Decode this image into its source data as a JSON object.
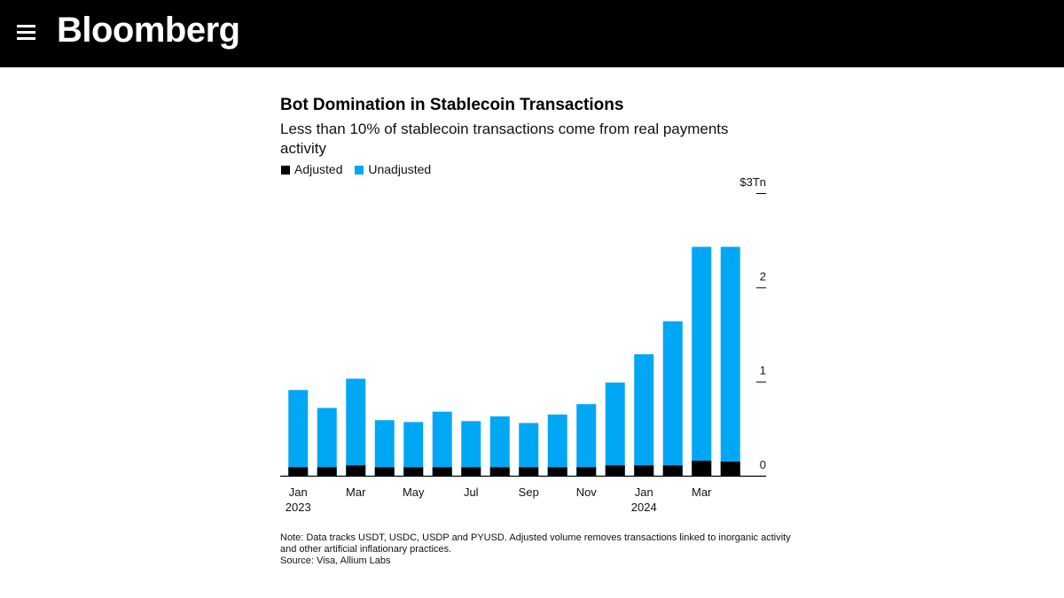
{
  "header": {
    "brand": "Bloomberg",
    "menu_icon": "hamburger-menu-icon",
    "background": "#000000"
  },
  "chart_data": {
    "type": "bar",
    "stacked": false,
    "title": "Bot Domination in Stablecoin Transactions",
    "subtitle": "Less than 10% of stablecoin transactions come from real payments activity",
    "legend": [
      {
        "name": "Adjusted",
        "color": "#000000"
      },
      {
        "name": "Unadjusted",
        "color": "#00a7f5"
      }
    ],
    "legend_placement": "top-left",
    "categories": [
      "Jan 2023",
      "Feb 2023",
      "Mar 2023",
      "Apr 2023",
      "May 2023",
      "Jun 2023",
      "Jul 2023",
      "Aug 2023",
      "Sep 2023",
      "Oct 2023",
      "Nov 2023",
      "Dec 2023",
      "Jan 2024",
      "Feb 2024",
      "Mar 2024",
      "Apr 2024"
    ],
    "x_tick_labels": [
      {
        "index": 0,
        "label": "Jan",
        "sublabel": "2023"
      },
      {
        "index": 2,
        "label": "Mar",
        "sublabel": ""
      },
      {
        "index": 4,
        "label": "May",
        "sublabel": ""
      },
      {
        "index": 6,
        "label": "Jul",
        "sublabel": ""
      },
      {
        "index": 8,
        "label": "Sep",
        "sublabel": ""
      },
      {
        "index": 10,
        "label": "Nov",
        "sublabel": ""
      },
      {
        "index": 12,
        "label": "Jan",
        "sublabel": "2024"
      },
      {
        "index": 14,
        "label": "Mar",
        "sublabel": ""
      }
    ],
    "series": [
      {
        "name": "Unadjusted",
        "color": "#00a7f5",
        "values": [
          0.91,
          0.72,
          1.03,
          0.59,
          0.57,
          0.68,
          0.58,
          0.63,
          0.56,
          0.65,
          0.76,
          0.99,
          1.29,
          1.64,
          2.43,
          2.43
        ]
      },
      {
        "name": "Adjusted",
        "color": "#000000",
        "values": [
          0.09,
          0.09,
          0.11,
          0.09,
          0.09,
          0.09,
          0.09,
          0.09,
          0.09,
          0.09,
          0.09,
          0.11,
          0.11,
          0.11,
          0.16,
          0.15
        ]
      }
    ],
    "y_ticks": [
      {
        "value": 0,
        "label": "0"
      },
      {
        "value": 1,
        "label": "1"
      },
      {
        "value": 2,
        "label": "2"
      },
      {
        "value": 3,
        "label": "$3Tn"
      }
    ],
    "ylim": [
      0,
      3
    ],
    "y_axis_side": "right",
    "grid": false,
    "note": "Note: Data tracks USDT, USDC, USDP and PYUSD. Adjusted volume removes transactions linked to inorganic activity and other artificial inflationary practices.",
    "source": "Source: Visa, Allium Labs"
  }
}
